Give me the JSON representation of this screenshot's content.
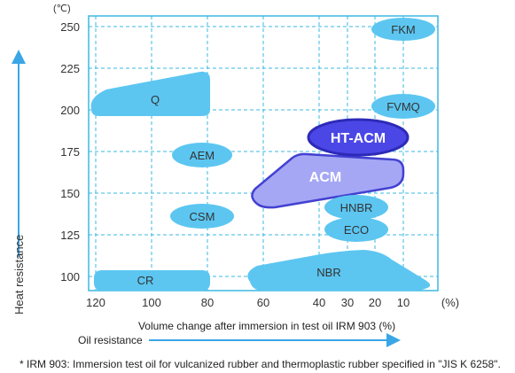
{
  "chart_data": {
    "type": "scatter",
    "y_unit": "(℃)",
    "x_unit": "(%)",
    "y_ticks": [
      "100",
      "125",
      "150",
      "175",
      "200",
      "225",
      "250"
    ],
    "x_ticks": [
      "120",
      "100",
      "80",
      "60",
      "40",
      "30",
      "20",
      "10"
    ],
    "xlabel": "Volume change after immersion in test oil IRM 903 (%)",
    "ylabel": "Heat resistance",
    "x_direction_label": "Oil resistance",
    "regions": [
      {
        "name": "FKM",
        "heat_c": [
          240,
          258
        ],
        "swell_pct": [
          15,
          7
        ]
      },
      {
        "name": "FVMQ",
        "heat_c": [
          193,
          212
        ],
        "swell_pct": [
          15,
          7
        ]
      },
      {
        "name": "Q",
        "heat_c": [
          196,
          224
        ],
        "swell_pct": [
          120,
          77
        ]
      },
      {
        "name": "AEM",
        "heat_c": [
          166,
          182
        ],
        "swell_pct": [
          93,
          78
        ]
      },
      {
        "name": "HT-ACM",
        "heat_c": [
          162,
          185
        ],
        "swell_pct": [
          37,
          18
        ]
      },
      {
        "name": "ACM",
        "heat_c": [
          145,
          178
        ],
        "swell_pct": [
          65,
          15
        ]
      },
      {
        "name": "CSM",
        "heat_c": [
          130,
          146
        ],
        "swell_pct": [
          97,
          77
        ]
      },
      {
        "name": "HNBR",
        "heat_c": [
          134,
          149
        ],
        "swell_pct": [
          38,
          20
        ]
      },
      {
        "name": "ECO",
        "heat_c": [
          119,
          134
        ],
        "swell_pct": [
          38,
          20
        ]
      },
      {
        "name": "NBR",
        "heat_c": [
          91,
          117
        ],
        "swell_pct": [
          67,
          10
        ]
      },
      {
        "name": "CR",
        "heat_c": [
          92,
          106
        ],
        "swell_pct": [
          120,
          77
        ]
      }
    ],
    "footnote": "* IRM 903: Immersion test oil for vulcanized rubber and thermoplastic rubber specified in \"JIS K 6258\".",
    "colors": {
      "grid": "#3bb8e2",
      "region_fill": "#5cc6f1",
      "acm_fill": "#a5a7f5",
      "ht_acm_fill": "#4b47e6",
      "outline": "#4241d1",
      "arrow": "#3aa6e6"
    }
  }
}
